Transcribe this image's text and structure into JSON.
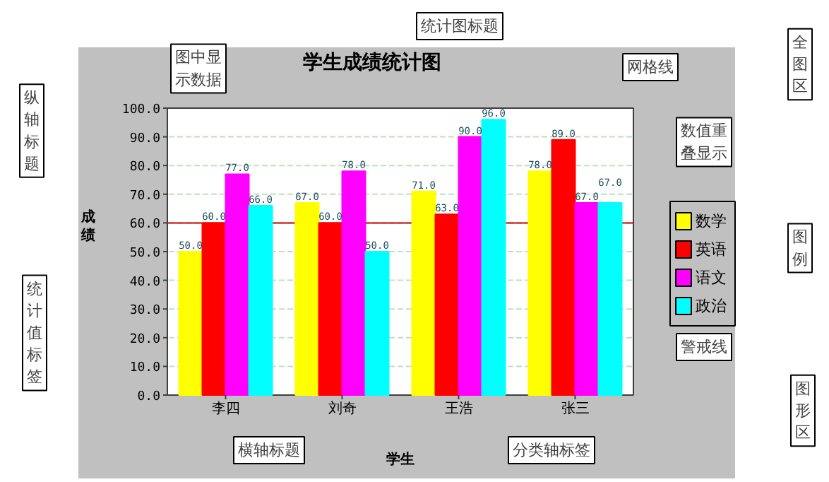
{
  "chart_data": {
    "type": "bar",
    "title": "学生成绩统计图",
    "xlabel": "学生",
    "ylabel": "成绩",
    "categories": [
      "李四",
      "刘奇",
      "王浩",
      "张三"
    ],
    "series": [
      {
        "name": "数学",
        "color": "#ffff00",
        "values": [
          50,
          67,
          71,
          78
        ],
        "value_labels": [
          "50.0",
          "67.0",
          "71.0",
          "78.0"
        ]
      },
      {
        "name": "英语",
        "color": "#ff0000",
        "values": [
          60,
          60,
          63,
          89
        ],
        "value_labels": [
          "60.0",
          "60.0",
          "63.0",
          "89.0"
        ]
      },
      {
        "name": "语文",
        "color": "#ff00ff",
        "values": [
          77,
          78,
          90,
          67
        ],
        "value_labels": [
          "77.0",
          "78.0",
          "90.0",
          "67.0"
        ]
      },
      {
        "name": "政治",
        "color": "#00ffff",
        "values": [
          66,
          50,
          96,
          67
        ],
        "value_labels": [
          "66.0",
          "50.0",
          "96.0",
          "67.0"
        ]
      }
    ],
    "ylim": [
      0,
      100
    ],
    "yticks": [
      {
        "value": 0,
        "label": "0.0"
      },
      {
        "value": 10,
        "label": "10.0"
      },
      {
        "value": 20,
        "label": "20.0"
      },
      {
        "value": 30,
        "label": "30.0"
      },
      {
        "value": 40,
        "label": "40.0"
      },
      {
        "value": 50,
        "label": "50.0"
      },
      {
        "value": 60,
        "label": "60.0"
      },
      {
        "value": 70,
        "label": "70.0"
      },
      {
        "value": 80,
        "label": "80.0"
      },
      {
        "value": 90,
        "label": "90.0"
      },
      {
        "value": 100,
        "label": "100.0"
      }
    ],
    "grid": "y",
    "legend": "right",
    "ref_lines": [
      {
        "axis": "y",
        "value": 60,
        "color": "#cc0000"
      }
    ],
    "annotations": [
      "统计图标题",
      "全图区",
      "图中显示数据",
      "网格线",
      "数值重叠显示",
      "纵轴标题",
      "图例",
      "统计值标签",
      "警戒线",
      "图形区",
      "横轴标题",
      "分类轴标签"
    ]
  }
}
